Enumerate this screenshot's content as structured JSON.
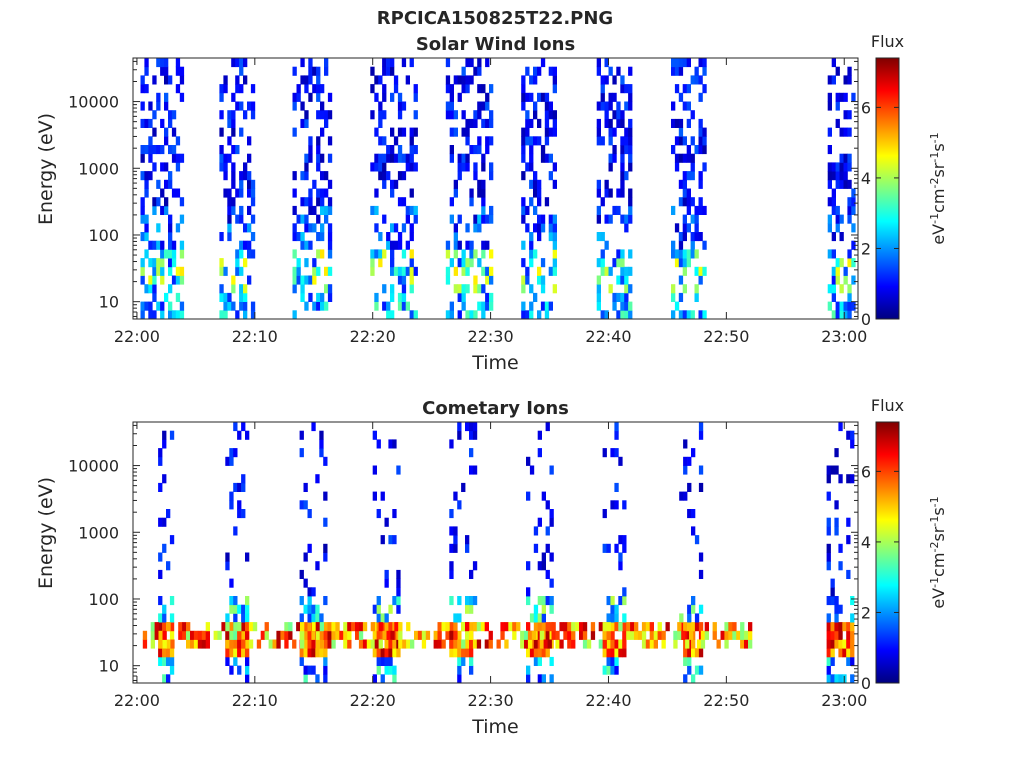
{
  "figure_title": "RPCICA150825T22.PNG",
  "colorbar": {
    "title": "Flux",
    "label_base": "eV",
    "label_parts": [
      {
        "t": "eV",
        "sup": false
      },
      {
        "t": "-1",
        "sup": true
      },
      {
        "t": "cm",
        "sup": false
      },
      {
        "t": "-2",
        "sup": true
      },
      {
        "t": "sr",
        "sup": false
      },
      {
        "t": "-1",
        "sup": true
      },
      {
        "t": "s",
        "sup": false
      },
      {
        "t": "-1",
        "sup": true
      }
    ],
    "range": [
      0,
      7.4
    ],
    "ticks": [
      "0",
      "2",
      "4",
      "6"
    ],
    "tick_values": [
      0,
      2,
      4,
      6
    ],
    "colormap": "jet"
  },
  "chart_data": [
    {
      "type": "heatmap",
      "title": "Solar Wind Ions",
      "xlabel": "Time",
      "ylabel": "Energy (eV)",
      "xlim": [
        "21:59:40",
        "23:01:10"
      ],
      "ylim": [
        5.5,
        45000
      ],
      "yscale": "log",
      "x_ticks": [
        "22:00",
        "22:10",
        "22:20",
        "22:30",
        "22:40",
        "22:50",
        "23:00"
      ],
      "x_tick_minutes": [
        0,
        10,
        20,
        30,
        40,
        50,
        60
      ],
      "y_ticks": [
        "10",
        "100",
        "1000",
        "10000"
      ],
      "y_tick_values": [
        10,
        100,
        1000,
        10000
      ],
      "grid": false,
      "bursts_minutes": [
        [
          0.3,
          3.7
        ],
        [
          7.0,
          9.8
        ],
        [
          13.2,
          16.3
        ],
        [
          19.8,
          23.5
        ],
        [
          26.2,
          29.9
        ],
        [
          32.6,
          35.5
        ],
        [
          39.0,
          42.0
        ],
        [
          45.3,
          48.3
        ],
        [
          58.6,
          60.8
        ]
      ],
      "emission": [
        {
          "energy_range_eV": [
            300,
            40000
          ],
          "flux_range": [
            0.3,
            1.5
          ],
          "description": "sparse high-energy counts"
        },
        {
          "energy_range_eV": [
            15,
            60
          ],
          "peak_flux": 5.0
        },
        {
          "energy_range_eV": [
            5.5,
            12
          ],
          "flux_range": [
            1.0,
            3.5
          ]
        }
      ]
    },
    {
      "type": "heatmap",
      "title": "Cometary Ions",
      "xlabel": "Time",
      "ylabel": "Energy (eV)",
      "xlim": [
        "21:59:40",
        "23:01:10"
      ],
      "ylim": [
        5.5,
        45000
      ],
      "yscale": "log",
      "x_ticks": [
        "22:00",
        "22:10",
        "22:20",
        "22:30",
        "22:40",
        "22:50",
        "23:00"
      ],
      "x_tick_minutes": [
        0,
        10,
        20,
        30,
        40,
        50,
        60
      ],
      "y_ticks": [
        "10",
        "100",
        "1000",
        "10000"
      ],
      "y_tick_values": [
        10,
        100,
        1000,
        10000
      ],
      "grid": false,
      "bursts_minutes": [
        [
          1.8,
          3.0
        ],
        [
          7.5,
          9.3
        ],
        [
          13.8,
          16.0
        ],
        [
          20.0,
          22.2
        ],
        [
          26.5,
          28.8
        ],
        [
          33.0,
          35.2
        ],
        [
          39.5,
          41.2
        ],
        [
          46.0,
          47.8
        ],
        [
          58.5,
          60.8
        ]
      ],
      "emission": [
        {
          "energy_range_eV": [
            20,
            45
          ],
          "flux_range": [
            5.0,
            7.2
          ],
          "description": "continuous low-energy cometary ion band"
        },
        {
          "energy_range_eV": [
            45,
            120
          ],
          "flux_range": [
            1.0,
            4.0
          ]
        },
        {
          "energy_range_eV": [
            150,
            11000
          ],
          "flux_range": [
            0.3,
            1.5
          ],
          "description": "sparse high-energy counts"
        }
      ]
    }
  ]
}
